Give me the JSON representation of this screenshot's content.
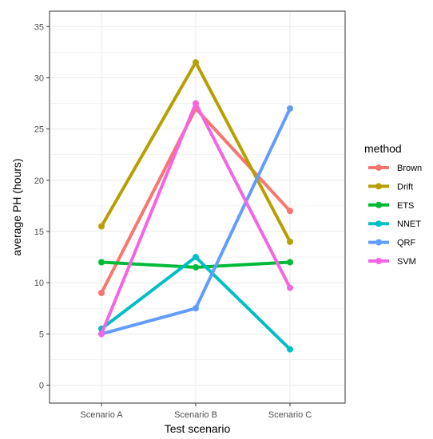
{
  "chart_data": {
    "type": "line",
    "title": "",
    "xlabel": "Test scenario",
    "ylabel": "average PH (hours)",
    "categories": [
      "Scenario A",
      "Scenario B",
      "Scenario C"
    ],
    "ylim": [
      -1.75,
      36.5
    ],
    "yticks": [
      0,
      5,
      10,
      15,
      20,
      25,
      30,
      35
    ],
    "grid": true,
    "legend": {
      "title": "method",
      "placement": "right"
    },
    "series": [
      {
        "name": "Brown",
        "color": "#F8766D",
        "values": [
          9,
          27,
          17
        ]
      },
      {
        "name": "Drift",
        "color": "#B79F00",
        "values": [
          15.5,
          31.5,
          14
        ]
      },
      {
        "name": "ETS",
        "color": "#00BA38",
        "values": [
          12,
          11.5,
          12
        ]
      },
      {
        "name": "NNET",
        "color": "#00BFC4",
        "values": [
          5.5,
          12.5,
          3.5
        ]
      },
      {
        "name": "QRF",
        "color": "#619CFF",
        "values": [
          5,
          7.5,
          27
        ]
      },
      {
        "name": "SVM",
        "color": "#F564E3",
        "values": [
          5,
          27.5,
          9.5
        ]
      }
    ]
  }
}
